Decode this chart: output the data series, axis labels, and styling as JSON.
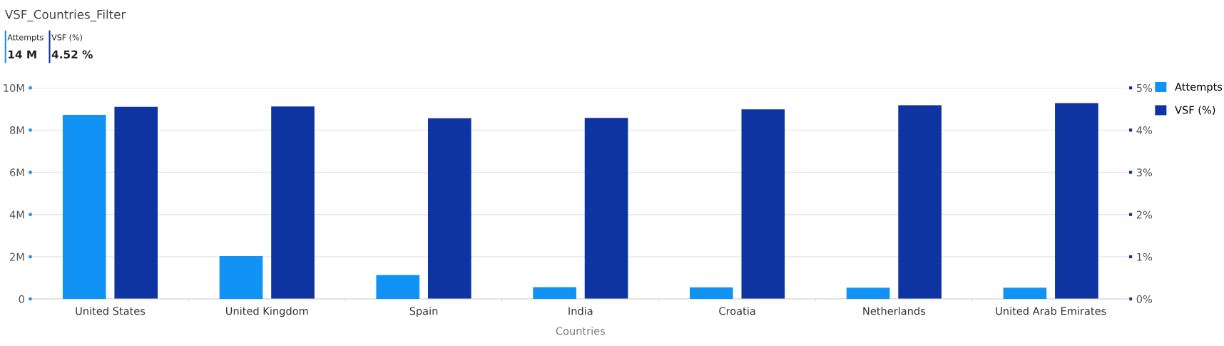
{
  "chart_data": {
    "type": "bar",
    "title": "VSF_Countries_Filter",
    "annotations": [
      "Attempts",
      "14 M",
      "VSF (%)",
      "4.52 %"
    ],
    "xlabel": "Countries",
    "categories": [
      "United States",
      "United Kingdom",
      "Spain",
      "India",
      "Croatia",
      "Netherlands",
      "United Arab Emirates"
    ],
    "series": [
      {
        "name": "Attempts",
        "color": "#1192f5",
        "values": [
          8.72,
          2.03,
          1.13,
          0.56,
          0.55,
          0.53,
          0.53
        ]
      },
      {
        "name": "VSF (%)",
        "color": "#0d34a0",
        "axis": "y2",
        "values": [
          4.55,
          4.56,
          4.28,
          4.29,
          4.49,
          4.59,
          4.64
        ]
      }
    ],
    "ylim": [
      0,
      10
    ],
    "yticks": [
      0,
      {
        "value": 2,
        "label": "2M"
      },
      {
        "value": 4,
        "label": "4M"
      },
      {
        "value": 6,
        "label": "6M"
      },
      {
        "value": 8,
        "label": "8M"
      },
      {
        "value": 10,
        "label": "10M"
      }
    ],
    "y2lim": [
      0,
      5
    ],
    "y2ticks": [
      {
        "value": 0,
        "label": "0%"
      },
      {
        "value": 1,
        "label": "1%"
      },
      {
        "value": 2,
        "label": "2%"
      },
      {
        "value": 3,
        "label": "3%"
      },
      {
        "value": 4,
        "label": "4%"
      },
      {
        "value": 5,
        "label": "5%"
      }
    ],
    "grid": "y",
    "legend": "top right"
  }
}
